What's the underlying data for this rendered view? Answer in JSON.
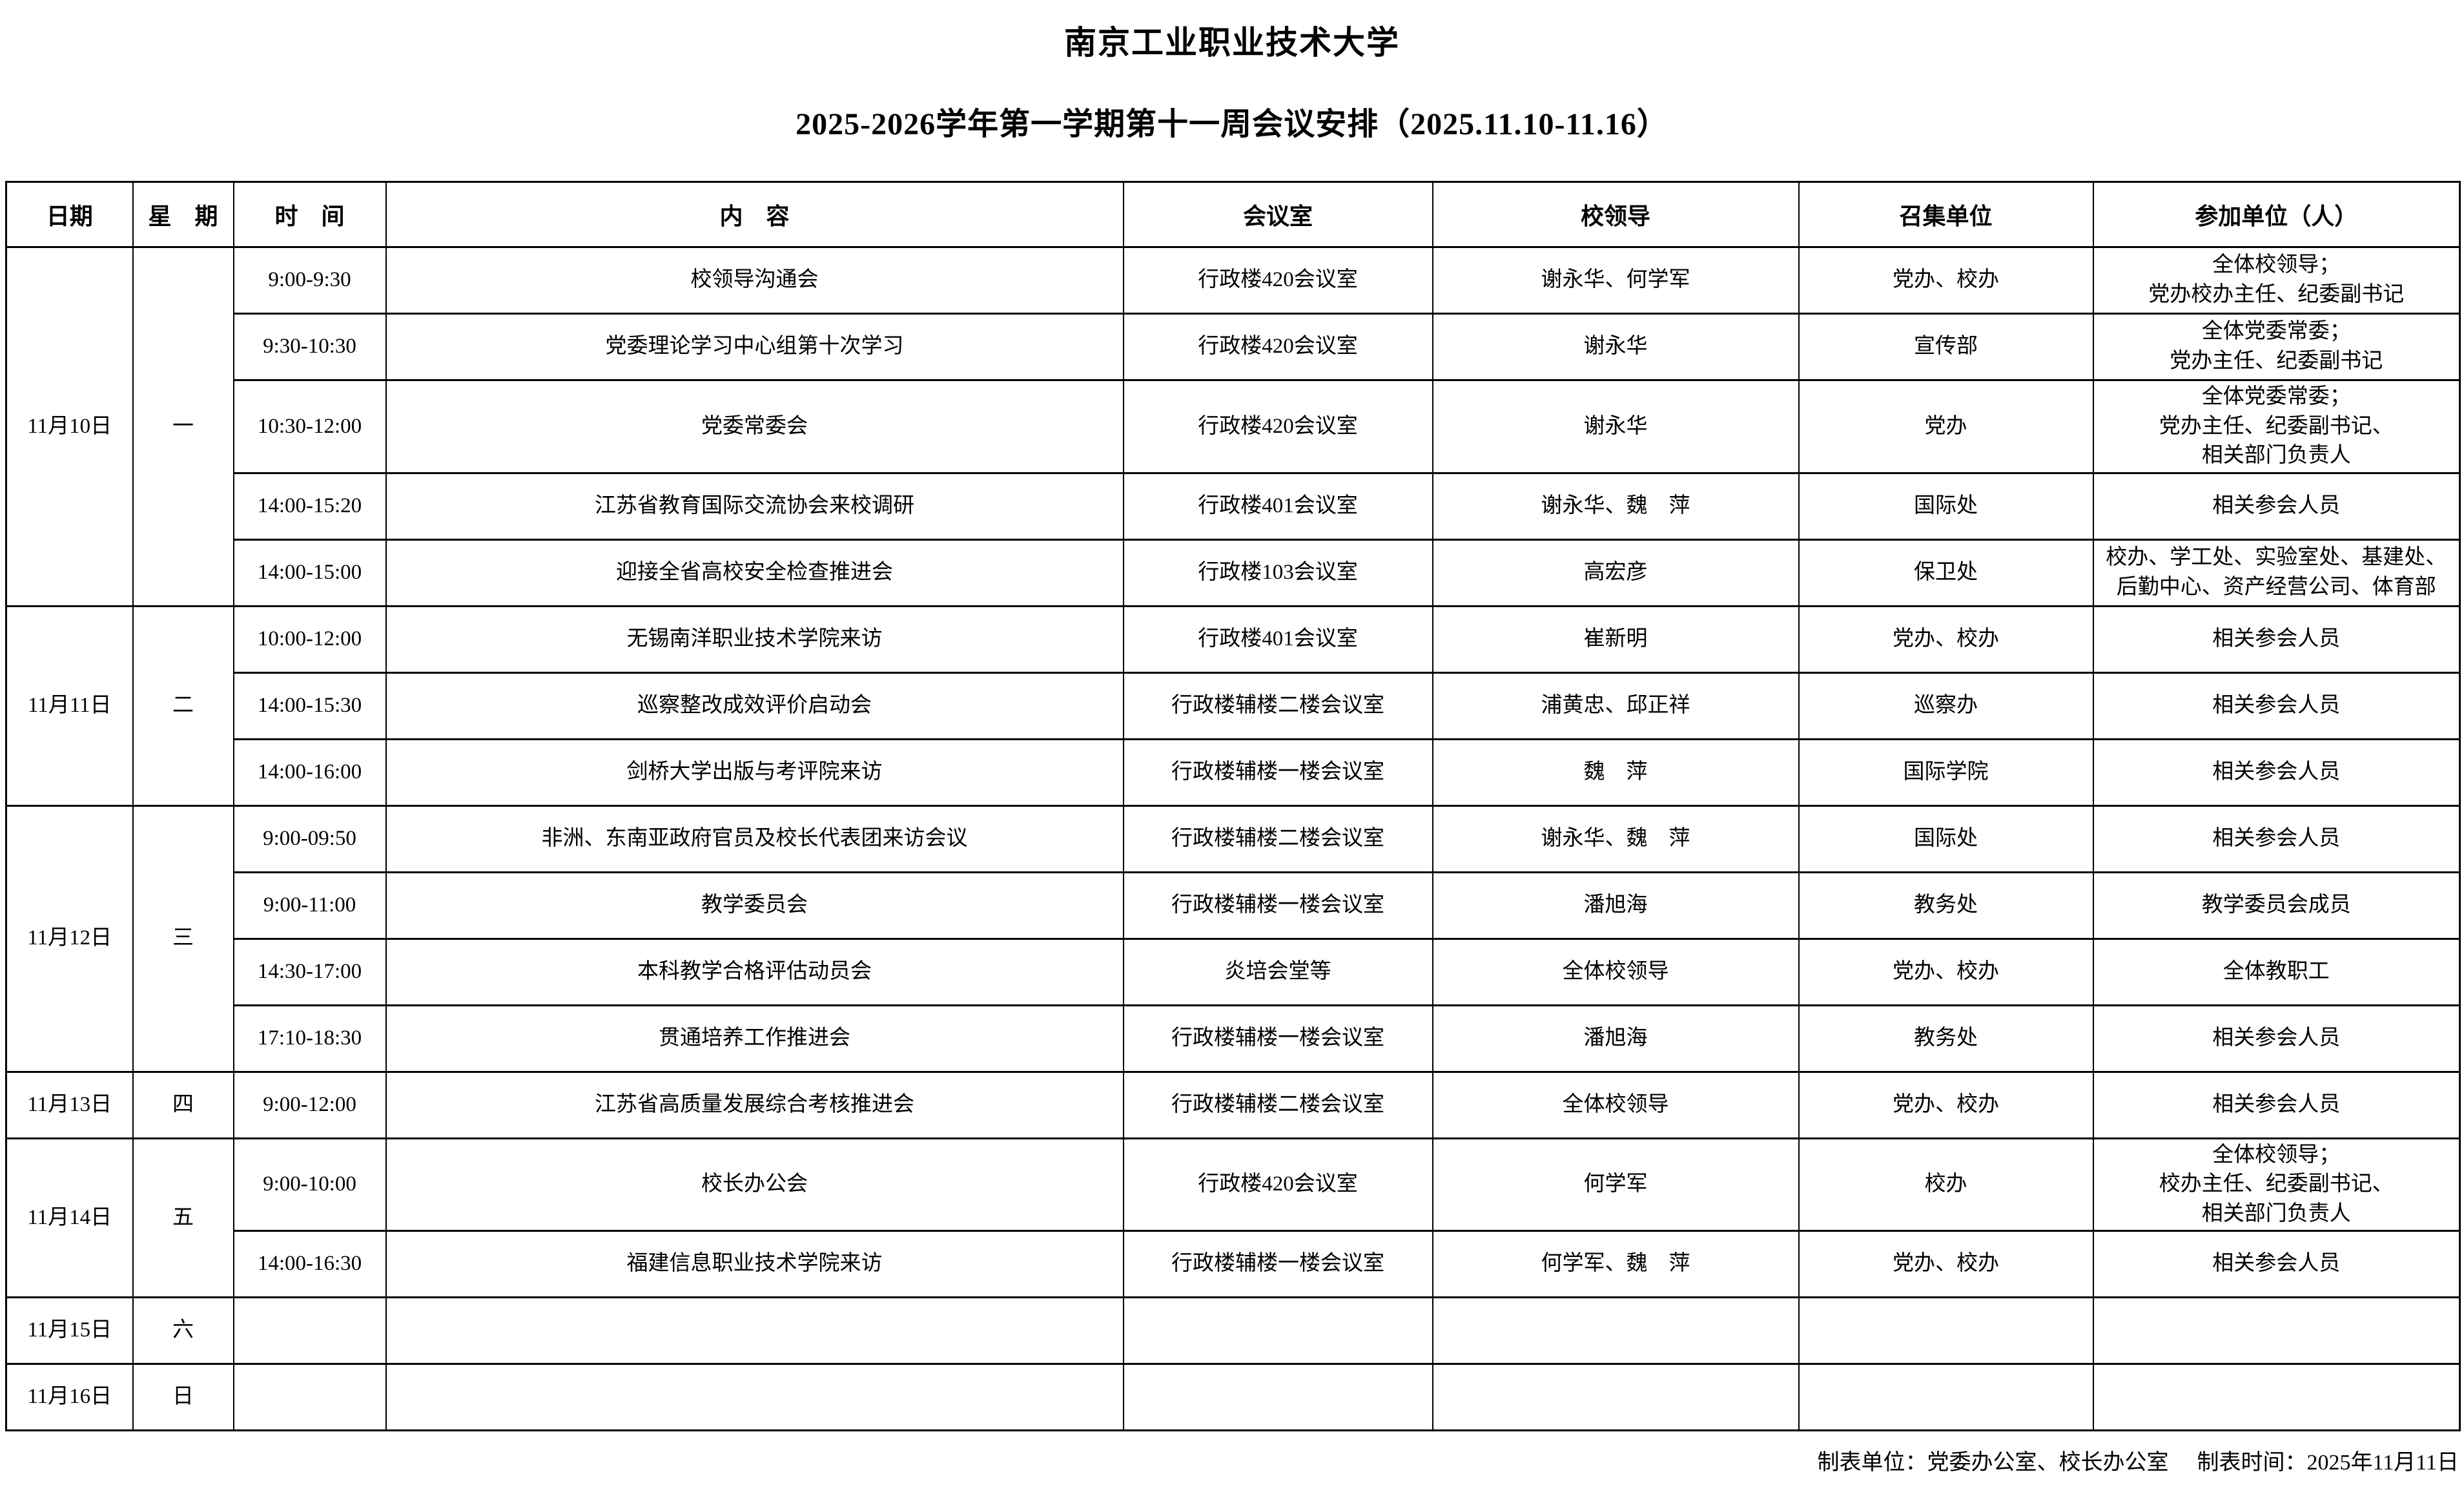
{
  "title": "南京工业职业技术大学",
  "subtitle": "2025-2026学年第一学期第十一周会议安排（2025.11.10-11.16）",
  "colors": {
    "background": "#ffffff",
    "text": "#000000",
    "border": "#000000"
  },
  "table": {
    "headers": [
      "日期",
      "星　期",
      "时　间",
      "内　容",
      "会议室",
      "校领导",
      "召集单位",
      "参加单位（人）"
    ],
    "days": [
      {
        "date": "11月10日",
        "week": "一",
        "meetings": [
          {
            "time": "9:00-9:30",
            "content": "校领导沟通会",
            "room": "行政楼420会议室",
            "leaders": "谢永华、何学军",
            "organizer": "党办、校办",
            "participants": "全体校领导；\n党办校办主任、纪委副书记"
          },
          {
            "time": "9:30-10:30",
            "content": "党委理论学习中心组第十次学习",
            "room": "行政楼420会议室",
            "leaders": "谢永华",
            "organizer": "宣传部",
            "participants": "全体党委常委；\n党办主任、纪委副书记"
          },
          {
            "time": "10:30-12:00",
            "content": "党委常委会",
            "room": "行政楼420会议室",
            "leaders": "谢永华",
            "organizer": "党办",
            "participants": "全体党委常委；\n党办主任、纪委副书记、\n相关部门负责人"
          },
          {
            "time": "14:00-15:20",
            "content": "江苏省教育国际交流协会来校调研",
            "room": "行政楼401会议室",
            "leaders": "谢永华、魏　萍",
            "organizer": "国际处",
            "participants": "相关参会人员"
          },
          {
            "time": "14:00-15:00",
            "content": "迎接全省高校安全检查推进会",
            "room": "行政楼103会议室",
            "leaders": "高宏彦",
            "organizer": "保卫处",
            "participants": "校办、学工处、实验室处、基建处、\n后勤中心、资产经营公司、体育部"
          }
        ]
      },
      {
        "date": "11月11日",
        "week": "二",
        "meetings": [
          {
            "time": "10:00-12:00",
            "content": "无锡南洋职业技术学院来访",
            "room": "行政楼401会议室",
            "leaders": "崔新明",
            "organizer": "党办、校办",
            "participants": "相关参会人员"
          },
          {
            "time": "14:00-15:30",
            "content": "巡察整改成效评价启动会",
            "room": "行政楼辅楼二楼会议室",
            "leaders": "浦黄忠、邱正祥",
            "organizer": "巡察办",
            "participants": "相关参会人员"
          },
          {
            "time": "14:00-16:00",
            "content": "剑桥大学出版与考评院来访",
            "room": "行政楼辅楼一楼会议室",
            "leaders": "魏　萍",
            "organizer": "国际学院",
            "participants": "相关参会人员"
          }
        ]
      },
      {
        "date": "11月12日",
        "week": "三",
        "meetings": [
          {
            "time": "9:00-09:50",
            "content": "非洲、东南亚政府官员及校长代表团来访会议",
            "room": "行政楼辅楼二楼会议室",
            "leaders": "谢永华、魏　萍",
            "organizer": "国际处",
            "participants": "相关参会人员"
          },
          {
            "time": "9:00-11:00",
            "content": "教学委员会",
            "room": "行政楼辅楼一楼会议室",
            "leaders": "潘旭海",
            "organizer": "教务处",
            "participants": "教学委员会成员"
          },
          {
            "time": "14:30-17:00",
            "content": "本科教学合格评估动员会",
            "room": "炎培会堂等",
            "leaders": "全体校领导",
            "organizer": "党办、校办",
            "participants": "全体教职工"
          },
          {
            "time": "17:10-18:30",
            "content": "贯通培养工作推进会",
            "room": "行政楼辅楼一楼会议室",
            "leaders": "潘旭海",
            "organizer": "教务处",
            "participants": "相关参会人员"
          }
        ]
      },
      {
        "date": "11月13日",
        "week": "四",
        "meetings": [
          {
            "time": "9:00-12:00",
            "content": "江苏省高质量发展综合考核推进会",
            "room": "行政楼辅楼二楼会议室",
            "leaders": "全体校领导",
            "organizer": "党办、校办",
            "participants": "相关参会人员"
          }
        ]
      },
      {
        "date": "11月14日",
        "week": "五",
        "meetings": [
          {
            "time": "9:00-10:00",
            "content": "校长办公会",
            "room": "行政楼420会议室",
            "leaders": "何学军",
            "organizer": "校办",
            "participants": "全体校领导；\n校办主任、纪委副书记、\n相关部门负责人"
          },
          {
            "time": "14:00-16:30",
            "content": "福建信息职业技术学院来访",
            "room": "行政楼辅楼一楼会议室",
            "leaders": "何学军、魏　萍",
            "organizer": "党办、校办",
            "participants": "相关参会人员"
          }
        ]
      },
      {
        "date": "11月15日",
        "week": "六",
        "meetings": [
          {
            "time": "",
            "content": "",
            "room": "",
            "leaders": "",
            "organizer": "",
            "participants": ""
          }
        ]
      },
      {
        "date": "11月16日",
        "week": "日",
        "meetings": [
          {
            "time": "",
            "content": "",
            "room": "",
            "leaders": "",
            "organizer": "",
            "participants": ""
          }
        ]
      }
    ]
  },
  "footer": {
    "unit": "制表单位：党委办公室、校长办公室",
    "time": "制表时间：2025年11月11日"
  }
}
